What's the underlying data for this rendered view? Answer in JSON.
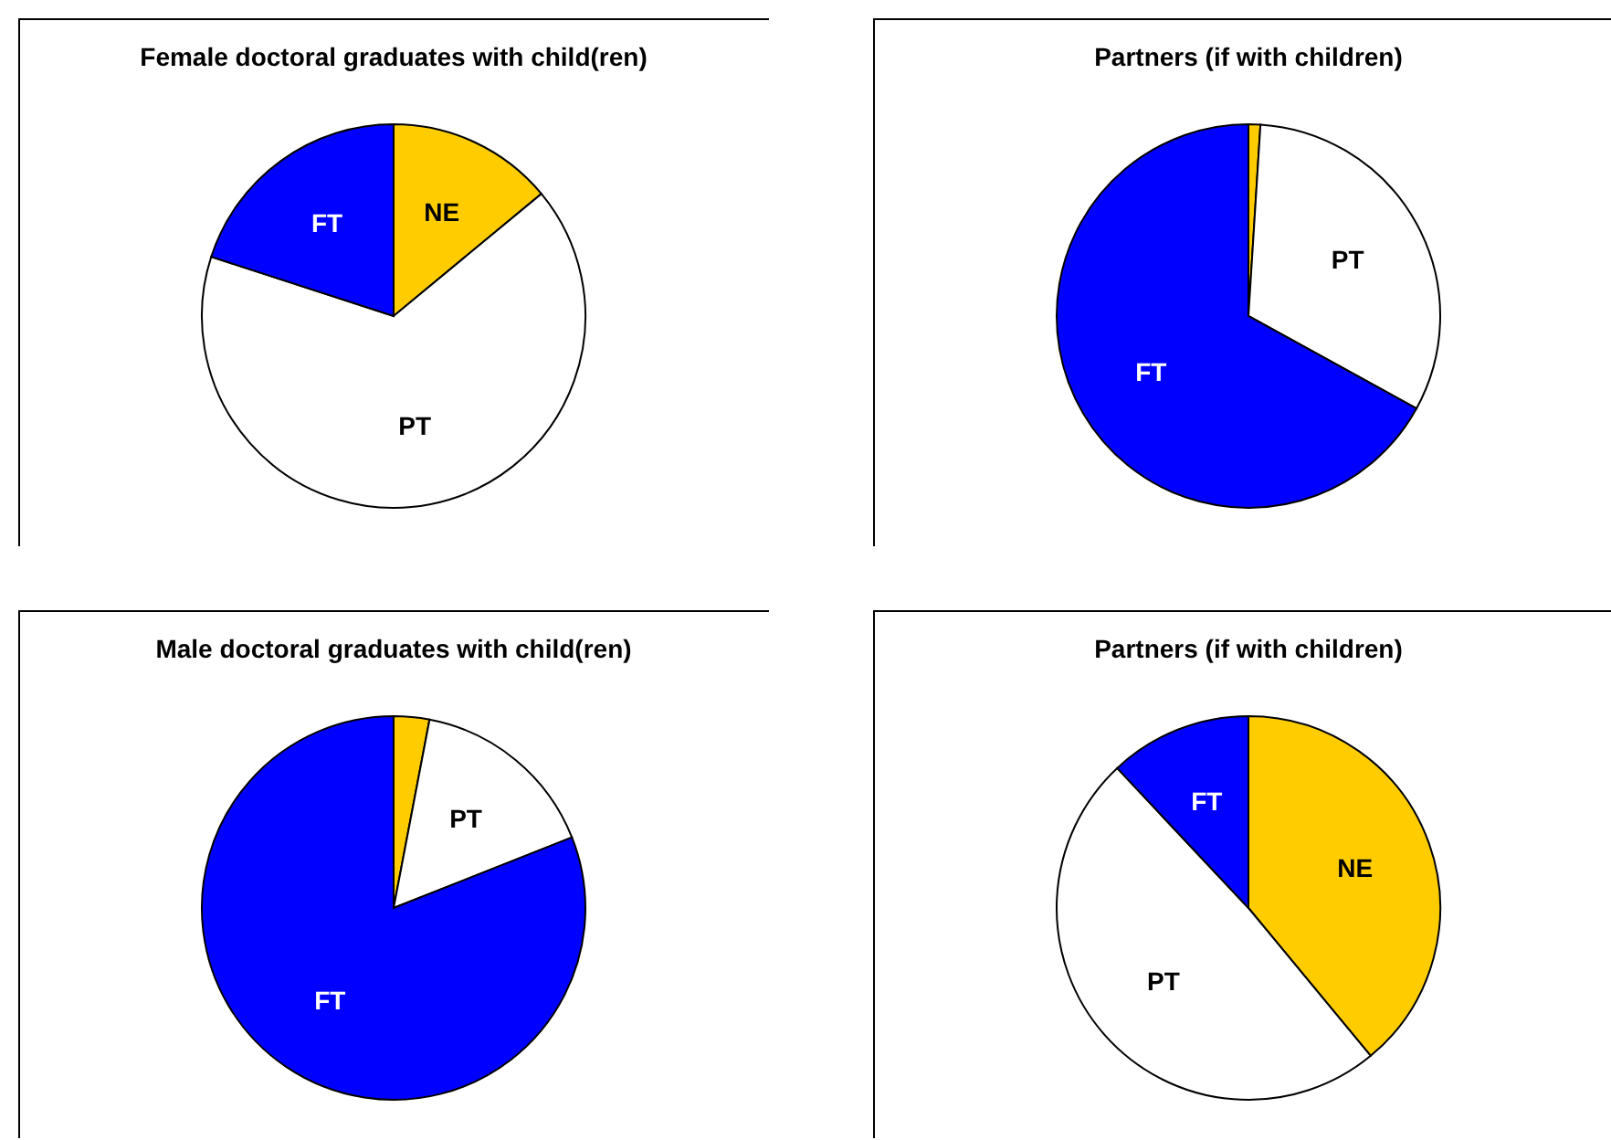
{
  "chart_data": [
    {
      "type": "pie",
      "title": "Female doctoral graduates with child(ren)",
      "categories": [
        "NE",
        "PT",
        "FT"
      ],
      "values": [
        14,
        66,
        20
      ],
      "colors": [
        "#ffcc00",
        "#ffffff",
        "#0000ff"
      ]
    },
    {
      "type": "pie",
      "title": "Partners (if with children)",
      "categories": [
        null,
        "PT",
        "FT"
      ],
      "values": [
        1,
        32,
        67
      ],
      "colors": [
        "#ffcc00",
        "#ffffff",
        "#0000ff"
      ]
    },
    {
      "type": "pie",
      "title": "Male doctoral graduates with child(ren)",
      "categories": [
        null,
        "PT",
        "FT"
      ],
      "values": [
        3,
        16,
        81
      ],
      "colors": [
        "#ffcc00",
        "#ffffff",
        "#0000ff"
      ]
    },
    {
      "type": "pie",
      "title": "Partners (if with children)",
      "categories": [
        "NE",
        "PT",
        "FT"
      ],
      "values": [
        39,
        49,
        12
      ],
      "colors": [
        "#ffcc00",
        "#ffffff",
        "#0000ff"
      ]
    }
  ]
}
